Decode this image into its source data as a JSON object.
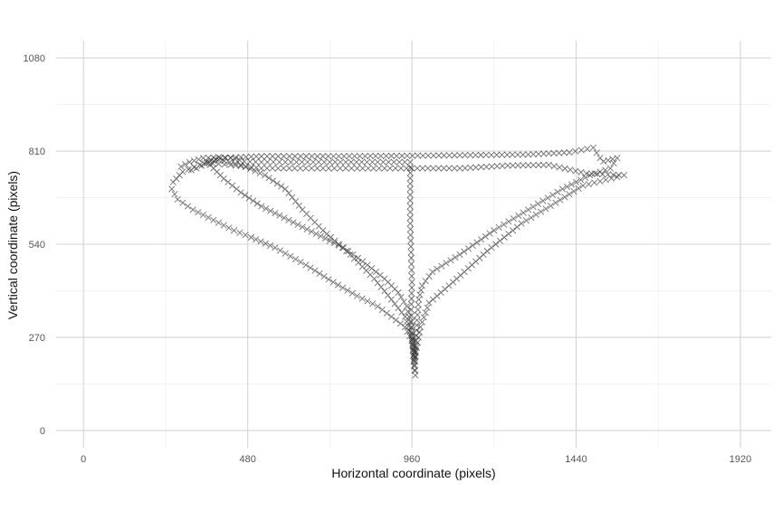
{
  "chart_data": {
    "type": "scatter",
    "title": "",
    "xlabel": "Horizontal coordinate (pixels)",
    "ylabel": "Vertical coordinate (pixels)",
    "xlim": [
      -80,
      2010
    ],
    "ylim": [
      -50,
      1130
    ],
    "x_ticks": [
      "0",
      "480",
      "960",
      "1440",
      "1920"
    ],
    "y_ticks": [
      "0",
      "270",
      "540",
      "810",
      "1080"
    ],
    "x_tick_values": [
      0,
      480,
      960,
      1440,
      1920
    ],
    "y_tick_values": [
      0,
      270,
      540,
      810,
      1080
    ],
    "grid": true,
    "legend": "none",
    "marker": "x",
    "marker_color": "#333333",
    "series": [
      {
        "values": [
          [
            285,
            765
          ],
          [
            310,
            778
          ],
          [
            350,
            790
          ],
          [
            395,
            792
          ],
          [
            430,
            790
          ],
          [
            470,
            780
          ],
          [
            520,
            778
          ],
          [
            590,
            778
          ],
          [
            720,
            778
          ],
          [
            860,
            778
          ],
          [
            955,
            778
          ],
          [
            955,
            700
          ],
          [
            955,
            600
          ],
          [
            958,
            500
          ],
          [
            960,
            430
          ],
          [
            958,
            350
          ],
          [
            960,
            280
          ],
          [
            965,
            200
          ],
          [
            970,
            160
          ],
          [
            965,
            220
          ],
          [
            958,
            300
          ],
          [
            945,
            360
          ],
          [
            920,
            400
          ],
          [
            880,
            440
          ],
          [
            830,
            480
          ],
          [
            760,
            530
          ],
          [
            680,
            570
          ],
          [
            600,
            610
          ],
          [
            520,
            650
          ],
          [
            460,
            690
          ],
          [
            410,
            730
          ],
          [
            380,
            760
          ],
          [
            360,
            780
          ],
          [
            400,
            790
          ],
          [
            520,
            795
          ],
          [
            700,
            795
          ],
          [
            900,
            796
          ],
          [
            1100,
            798
          ],
          [
            1300,
            800
          ],
          [
            1420,
            806
          ],
          [
            1490,
            820
          ],
          [
            1510,
            790
          ],
          [
            1520,
            780
          ],
          [
            1560,
            790
          ],
          [
            1540,
            760
          ],
          [
            1480,
            740
          ],
          [
            1400,
            700
          ],
          [
            1300,
            640
          ],
          [
            1200,
            580
          ],
          [
            1100,
            510
          ],
          [
            1020,
            460
          ],
          [
            990,
            420
          ],
          [
            980,
            380
          ],
          [
            975,
            320
          ],
          [
            972,
            260
          ],
          [
            970,
            200
          ],
          [
            965,
            260
          ],
          [
            940,
            330
          ],
          [
            900,
            380
          ],
          [
            850,
            440
          ],
          [
            780,
            510
          ],
          [
            700,
            580
          ],
          [
            640,
            640
          ],
          [
            590,
            700
          ],
          [
            530,
            740
          ],
          [
            460,
            770
          ],
          [
            395,
            785
          ],
          [
            340,
            770
          ],
          [
            290,
            750
          ],
          [
            262,
            720
          ],
          [
            258,
            700
          ],
          [
            275,
            670
          ],
          [
            320,
            640
          ],
          [
            380,
            610
          ],
          [
            440,
            580
          ],
          [
            490,
            560
          ],
          [
            560,
            530
          ],
          [
            650,
            480
          ],
          [
            730,
            430
          ],
          [
            800,
            390
          ],
          [
            860,
            360
          ],
          [
            900,
            330
          ],
          [
            940,
            300
          ],
          [
            960,
            260
          ],
          [
            968,
            210
          ],
          [
            985,
            300
          ],
          [
            1010,
            370
          ],
          [
            1080,
            430
          ],
          [
            1180,
            520
          ],
          [
            1280,
            600
          ],
          [
            1380,
            660
          ],
          [
            1460,
            710
          ],
          [
            1560,
            735
          ],
          [
            1580,
            740
          ],
          [
            1470,
            745
          ],
          [
            1360,
            770
          ],
          [
            1240,
            768
          ],
          [
            1100,
            760
          ],
          [
            960,
            760
          ],
          [
            800,
            760
          ],
          [
            650,
            760
          ],
          [
            520,
            760
          ],
          [
            430,
            770
          ],
          [
            360,
            775
          ],
          [
            330,
            760
          ],
          [
            300,
            750
          ]
        ]
      }
    ]
  }
}
